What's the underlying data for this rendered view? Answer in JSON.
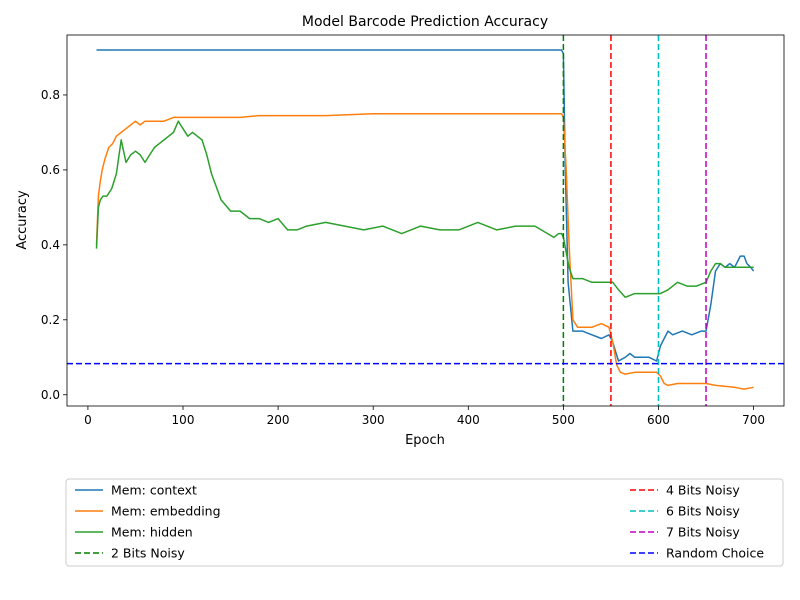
{
  "chart_data": {
    "type": "line",
    "title": "Model Barcode Prediction Accuracy",
    "xlabel": "Epoch",
    "ylabel": "Accuracy",
    "xlim": [
      -22,
      732
    ],
    "ylim": [
      -0.03,
      0.96
    ],
    "xticks": [
      0,
      100,
      200,
      300,
      400,
      500,
      600,
      700
    ],
    "yticks": [
      0.0,
      0.2,
      0.4,
      0.6,
      0.8
    ],
    "grid": false,
    "legend_placement": "below-plot",
    "series": [
      {
        "name": "Mem: context",
        "color": "#1f77b4",
        "style": "solid",
        "x": [
          9,
          100,
          200,
          300,
          400,
          495,
          498,
          500,
          502,
          505,
          510,
          520,
          530,
          540,
          548,
          552,
          558,
          565,
          570,
          575,
          580,
          590,
          598,
          602,
          606,
          610,
          615,
          625,
          635,
          645,
          650,
          655,
          660,
          665,
          670,
          675,
          680,
          686,
          690,
          693,
          697,
          700
        ],
        "y": [
          0.92,
          0.92,
          0.92,
          0.92,
          0.92,
          0.92,
          0.92,
          0.91,
          0.6,
          0.3,
          0.17,
          0.17,
          0.16,
          0.15,
          0.16,
          0.14,
          0.09,
          0.1,
          0.11,
          0.1,
          0.1,
          0.1,
          0.09,
          0.13,
          0.15,
          0.17,
          0.16,
          0.17,
          0.16,
          0.17,
          0.17,
          0.24,
          0.33,
          0.35,
          0.34,
          0.35,
          0.34,
          0.37,
          0.37,
          0.35,
          0.34,
          0.33
        ]
      },
      {
        "name": "Mem: embedding",
        "color": "#ff7f0e",
        "style": "solid",
        "x": [
          9,
          11,
          13,
          15,
          18,
          22,
          26,
          30,
          35,
          40,
          45,
          50,
          55,
          60,
          70,
          80,
          90,
          100,
          120,
          140,
          160,
          180,
          200,
          250,
          300,
          350,
          400,
          450,
          495,
          498,
          500,
          503,
          506,
          510,
          515,
          520,
          530,
          540,
          548,
          552,
          556,
          560,
          565,
          575,
          590,
          598,
          602,
          606,
          610,
          620,
          640,
          650,
          660,
          680,
          690,
          700
        ],
        "y": [
          0.4,
          0.53,
          0.57,
          0.6,
          0.63,
          0.66,
          0.67,
          0.69,
          0.7,
          0.71,
          0.72,
          0.73,
          0.72,
          0.73,
          0.73,
          0.73,
          0.74,
          0.74,
          0.74,
          0.74,
          0.74,
          0.745,
          0.745,
          0.745,
          0.75,
          0.75,
          0.75,
          0.75,
          0.75,
          0.75,
          0.74,
          0.6,
          0.4,
          0.2,
          0.18,
          0.18,
          0.18,
          0.19,
          0.18,
          0.14,
          0.08,
          0.06,
          0.055,
          0.06,
          0.06,
          0.06,
          0.05,
          0.03,
          0.025,
          0.03,
          0.03,
          0.03,
          0.025,
          0.02,
          0.015,
          0.02
        ]
      },
      {
        "name": "Mem: hidden",
        "color": "#2ca02c",
        "style": "solid",
        "x": [
          9,
          11,
          13,
          16,
          20,
          25,
          30,
          35,
          40,
          45,
          50,
          55,
          60,
          65,
          70,
          75,
          80,
          85,
          90,
          95,
          100,
          105,
          110,
          115,
          120,
          125,
          130,
          140,
          150,
          160,
          170,
          180,
          190,
          200,
          210,
          220,
          230,
          250,
          270,
          290,
          310,
          330,
          350,
          370,
          390,
          410,
          430,
          450,
          470,
          490,
          495,
          498,
          500,
          503,
          506,
          510,
          520,
          530,
          540,
          548,
          552,
          558,
          565,
          575,
          590,
          598,
          602,
          610,
          620,
          630,
          640,
          650,
          655,
          660,
          665,
          670,
          675,
          680,
          690,
          700
        ],
        "y": [
          0.39,
          0.5,
          0.52,
          0.53,
          0.53,
          0.55,
          0.59,
          0.68,
          0.62,
          0.64,
          0.65,
          0.64,
          0.62,
          0.64,
          0.66,
          0.67,
          0.68,
          0.69,
          0.7,
          0.73,
          0.71,
          0.69,
          0.7,
          0.69,
          0.68,
          0.64,
          0.59,
          0.52,
          0.49,
          0.49,
          0.47,
          0.47,
          0.46,
          0.47,
          0.44,
          0.44,
          0.45,
          0.46,
          0.45,
          0.44,
          0.45,
          0.43,
          0.45,
          0.44,
          0.44,
          0.46,
          0.44,
          0.45,
          0.45,
          0.42,
          0.43,
          0.43,
          0.42,
          0.38,
          0.34,
          0.31,
          0.31,
          0.3,
          0.3,
          0.3,
          0.3,
          0.28,
          0.26,
          0.27,
          0.27,
          0.27,
          0.27,
          0.28,
          0.3,
          0.29,
          0.29,
          0.3,
          0.33,
          0.35,
          0.35,
          0.34,
          0.34,
          0.34,
          0.34,
          0.34
        ]
      }
    ],
    "reference_lines": [
      {
        "name": "2 Bits Noisy",
        "orientation": "vertical",
        "value": 500,
        "color": "#008000",
        "style": "dashed"
      },
      {
        "name": "4 Bits Noisy",
        "orientation": "vertical",
        "value": 550,
        "color": "#ff0000",
        "style": "dashed"
      },
      {
        "name": "6 Bits Noisy",
        "orientation": "vertical",
        "value": 600,
        "color": "#00bfbf",
        "style": "dashed"
      },
      {
        "name": "7 Bits Noisy",
        "orientation": "vertical",
        "value": 650,
        "color": "#bf00bf",
        "style": "dashed"
      },
      {
        "name": "Random Choice",
        "orientation": "horizontal",
        "value": 0.083,
        "color": "#0000ff",
        "style": "dashed"
      }
    ]
  }
}
